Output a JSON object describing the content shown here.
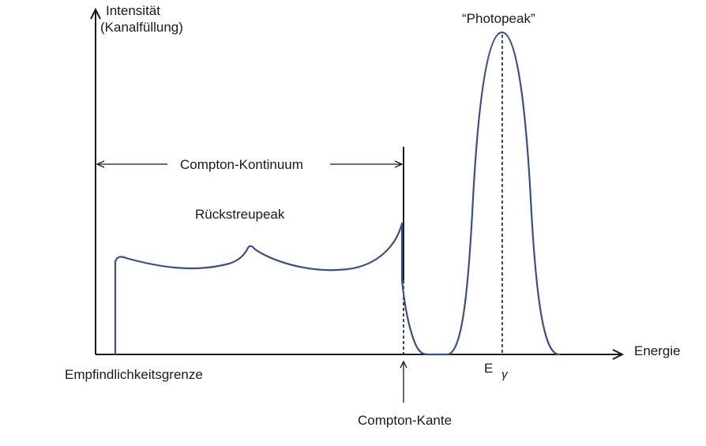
{
  "y_axis_label_line1": "Intensität",
  "y_axis_label_line2": "(Kanalfüllung)",
  "x_axis_label": "Energie",
  "photopeak_label": "“Photopeak”",
  "compton_continuum_label": "Compton-Kontinuum",
  "backscatter_label": "Rückstreupeak",
  "sensitivity_limit_label": "Empfindlichkeitsgrenze",
  "compton_edge_label": "Compton-Kante",
  "gamma_energy_label": {
    "letter": "E",
    "subscript": "γ"
  },
  "colors": {
    "curve": "#3a4f86",
    "axes": "#1a1a1a"
  }
}
